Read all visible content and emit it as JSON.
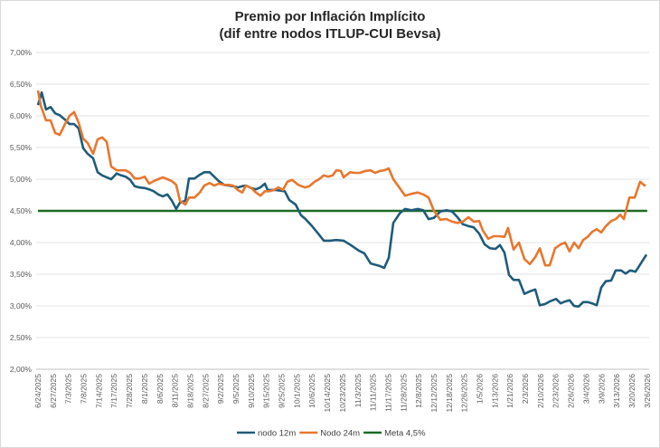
{
  "chart_data": {
    "type": "line",
    "title": [
      "Premio por Inflación Implícito",
      "(dif entre nodos ITLUP-CUI Bevsa)"
    ],
    "xlabel": "",
    "ylabel": "",
    "ylim": [
      2.0,
      7.0
    ],
    "yticks": [
      "2,00%",
      "2,50%",
      "3,00%",
      "3,50%",
      "4,00%",
      "4,50%",
      "5,00%",
      "5,50%",
      "6,00%",
      "6,50%",
      "7,00%"
    ],
    "x_tick_labels": [
      "6/24/2025",
      "6/27/2025",
      "7/3/2025",
      "7/8/2025",
      "7/14/2025",
      "7/17/2025",
      "7/28/2025",
      "8/1/2025",
      "8/6/2025",
      "8/11/2025",
      "8/18/2025",
      "8/27/2025",
      "9/2/2025",
      "9/5/2025",
      "9/10/2025",
      "9/15/2025",
      "9/25/2025",
      "10/1/2025",
      "10/6/2025",
      "10/14/2025",
      "10/23/2025",
      "11/3/2025",
      "11/11/2025",
      "11/17/2025",
      "11/28/2025",
      "12/8/2025",
      "12/12/2025",
      "12/18/2025",
      "12/26/2025",
      "1/5/2026",
      "1/13/2026",
      "1/21/2026",
      "2/3/2026",
      "2/10/2026",
      "2/23/2026",
      "2/26/2026",
      "3/4/2026",
      "3/9/2026",
      "3/13/2026",
      "3/20/2026",
      "3/26/2026"
    ],
    "x_note": "x values are positions on the category axis (0 = first tick label)",
    "grid": "horizontal",
    "legend": "bottom",
    "series": [
      {
        "name": "nodo 12m",
        "color": "#1f5c7a",
        "points": [
          [
            0,
            6.17
          ],
          [
            0.26,
            6.37
          ],
          [
            0.57,
            6.1
          ],
          [
            0.89,
            6.14
          ],
          [
            1.21,
            6.04
          ],
          [
            1.53,
            6.01
          ],
          [
            1.91,
            5.94
          ],
          [
            2.23,
            5.87
          ],
          [
            2.55,
            5.87
          ],
          [
            2.87,
            5.8
          ],
          [
            3.19,
            5.49
          ],
          [
            3.51,
            5.4
          ],
          [
            3.89,
            5.33
          ],
          [
            4.21,
            5.11
          ],
          [
            4.53,
            5.06
          ],
          [
            4.85,
            5.03
          ],
          [
            5.17,
            5.0
          ],
          [
            5.55,
            5.09
          ],
          [
            5.87,
            5.06
          ],
          [
            6.19,
            5.04
          ],
          [
            6.51,
            4.99
          ],
          [
            6.83,
            4.89
          ],
          [
            7.15,
            4.87
          ],
          [
            7.53,
            4.86
          ],
          [
            7.85,
            4.84
          ],
          [
            8.17,
            4.81
          ],
          [
            8.49,
            4.76
          ],
          [
            8.81,
            4.73
          ],
          [
            9.13,
            4.76
          ],
          [
            9.45,
            4.66
          ],
          [
            9.76,
            4.53
          ],
          [
            10.02,
            4.63
          ],
          [
            10.4,
            4.66
          ],
          [
            10.66,
            5.01
          ],
          [
            11.04,
            5.01
          ],
          [
            11.42,
            5.07
          ],
          [
            11.74,
            5.11
          ],
          [
            12.12,
            5.11
          ],
          [
            12.44,
            5.04
          ],
          [
            12.76,
            4.97
          ],
          [
            13.15,
            4.91
          ],
          [
            13.46,
            4.9
          ],
          [
            13.78,
            4.89
          ],
          [
            14.1,
            4.87
          ],
          [
            14.42,
            4.89
          ],
          [
            14.68,
            4.9
          ],
          [
            15.06,
            4.86
          ],
          [
            15.38,
            4.84
          ],
          [
            15.7,
            4.87
          ],
          [
            16.02,
            4.93
          ],
          [
            16.21,
            4.83
          ],
          [
            16.78,
            4.83
          ],
          [
            17.42,
            4.81
          ],
          [
            17.74,
            4.67
          ],
          [
            18.19,
            4.6
          ],
          [
            18.57,
            4.43
          ],
          [
            18.89,
            4.37
          ],
          [
            19.34,
            4.26
          ],
          [
            19.78,
            4.14
          ],
          [
            20.17,
            4.03
          ],
          [
            20.61,
            4.03
          ],
          [
            21.06,
            4.04
          ],
          [
            21.57,
            4.03
          ],
          [
            22.08,
            3.96
          ],
          [
            22.66,
            3.87
          ],
          [
            23.04,
            3.83
          ],
          [
            23.48,
            3.67
          ],
          [
            24.12,
            3.63
          ],
          [
            24.44,
            3.6
          ],
          [
            24.76,
            3.76
          ],
          [
            25.08,
            4.31
          ],
          [
            25.53,
            4.46
          ],
          [
            25.91,
            4.53
          ],
          [
            26.36,
            4.51
          ],
          [
            26.8,
            4.53
          ],
          [
            27.19,
            4.51
          ],
          [
            27.57,
            4.37
          ],
          [
            27.95,
            4.39
          ],
          [
            28.4,
            4.49
          ],
          [
            28.84,
            4.51
          ],
          [
            29.23,
            4.49
          ],
          [
            29.61,
            4.4
          ],
          [
            29.99,
            4.29
          ],
          [
            30.38,
            4.26
          ],
          [
            30.76,
            4.24
          ],
          [
            31.14,
            4.14
          ],
          [
            31.53,
            3.97
          ],
          [
            31.91,
            3.91
          ],
          [
            32.29,
            3.9
          ],
          [
            32.61,
            3.96
          ],
          [
            32.93,
            3.84
          ],
          [
            33.25,
            3.49
          ],
          [
            33.57,
            3.41
          ],
          [
            33.95,
            3.41
          ],
          [
            34.33,
            3.19
          ],
          [
            34.72,
            3.23
          ],
          [
            35.1,
            3.26
          ],
          [
            35.42,
            3.01
          ],
          [
            35.8,
            3.03
          ],
          [
            36.12,
            3.07
          ],
          [
            36.57,
            3.11
          ],
          [
            36.89,
            3.04
          ],
          [
            37.21,
            3.07
          ],
          [
            37.52,
            3.09
          ],
          [
            37.84,
            3.0
          ],
          [
            38.16,
            2.99
          ],
          [
            38.48,
            3.06
          ],
          [
            38.8,
            3.06
          ],
          [
            39.12,
            3.04
          ],
          [
            39.44,
            3.01
          ],
          [
            39.76,
            3.29
          ],
          [
            40.08,
            3.39
          ],
          [
            40.46,
            3.4
          ],
          [
            40.78,
            3.56
          ],
          [
            41.16,
            3.56
          ],
          [
            41.48,
            3.51
          ],
          [
            41.8,
            3.56
          ],
          [
            42.18,
            3.54
          ],
          [
            42.95,
            3.81
          ]
        ]
      },
      {
        "name": "Nodo 24m",
        "color": "#e8772e",
        "points": [
          [
            0,
            6.4
          ],
          [
            0.2,
            6.16
          ],
          [
            0.57,
            5.93
          ],
          [
            0.89,
            5.93
          ],
          [
            1.21,
            5.73
          ],
          [
            1.53,
            5.7
          ],
          [
            1.91,
            5.87
          ],
          [
            2.23,
            6.0
          ],
          [
            2.55,
            6.06
          ],
          [
            2.87,
            5.89
          ],
          [
            3.19,
            5.64
          ],
          [
            3.51,
            5.57
          ],
          [
            3.89,
            5.4
          ],
          [
            4.21,
            5.63
          ],
          [
            4.53,
            5.66
          ],
          [
            4.85,
            5.59
          ],
          [
            5.17,
            5.2
          ],
          [
            5.55,
            5.14
          ],
          [
            5.87,
            5.14
          ],
          [
            6.19,
            5.14
          ],
          [
            6.51,
            5.1
          ],
          [
            6.83,
            5.01
          ],
          [
            7.15,
            5.01
          ],
          [
            7.53,
            5.04
          ],
          [
            7.85,
            4.93
          ],
          [
            8.17,
            4.97
          ],
          [
            8.49,
            5.0
          ],
          [
            8.81,
            5.03
          ],
          [
            9.13,
            5.0
          ],
          [
            9.45,
            4.97
          ],
          [
            9.76,
            4.91
          ],
          [
            10.02,
            4.66
          ],
          [
            10.4,
            4.6
          ],
          [
            10.66,
            4.71
          ],
          [
            11.04,
            4.71
          ],
          [
            11.42,
            4.79
          ],
          [
            11.74,
            4.9
          ],
          [
            12.12,
            4.94
          ],
          [
            12.44,
            4.9
          ],
          [
            12.76,
            4.93
          ],
          [
            13.15,
            4.91
          ],
          [
            13.46,
            4.91
          ],
          [
            13.78,
            4.9
          ],
          [
            14.1,
            4.83
          ],
          [
            14.42,
            4.79
          ],
          [
            14.68,
            4.9
          ],
          [
            15.06,
            4.86
          ],
          [
            15.38,
            4.79
          ],
          [
            15.7,
            4.74
          ],
          [
            16.02,
            4.81
          ],
          [
            16.34,
            4.81
          ],
          [
            16.66,
            4.83
          ],
          [
            16.97,
            4.87
          ],
          [
            17.29,
            4.83
          ],
          [
            17.61,
            4.96
          ],
          [
            17.93,
            4.99
          ],
          [
            18.38,
            4.91
          ],
          [
            18.83,
            4.87
          ],
          [
            19.15,
            4.89
          ],
          [
            19.53,
            4.96
          ],
          [
            19.85,
            5.0
          ],
          [
            20.17,
            5.06
          ],
          [
            20.49,
            5.04
          ],
          [
            20.8,
            5.06
          ],
          [
            21.06,
            5.14
          ],
          [
            21.38,
            5.13
          ],
          [
            21.57,
            5.03
          ],
          [
            22.02,
            5.11
          ],
          [
            22.34,
            5.1
          ],
          [
            22.72,
            5.1
          ],
          [
            23.1,
            5.13
          ],
          [
            23.48,
            5.14
          ],
          [
            23.8,
            5.1
          ],
          [
            24.12,
            5.13
          ],
          [
            24.44,
            5.14
          ],
          [
            24.76,
            5.17
          ],
          [
            25.08,
            5.0
          ],
          [
            25.53,
            4.86
          ],
          [
            25.91,
            4.74
          ],
          [
            26.36,
            4.77
          ],
          [
            26.8,
            4.79
          ],
          [
            27.19,
            4.76
          ],
          [
            27.57,
            4.71
          ],
          [
            27.95,
            4.5
          ],
          [
            28.4,
            4.36
          ],
          [
            28.84,
            4.37
          ],
          [
            29.23,
            4.33
          ],
          [
            29.61,
            4.31
          ],
          [
            29.99,
            4.33
          ],
          [
            30.38,
            4.4
          ],
          [
            30.76,
            4.33
          ],
          [
            31.14,
            4.34
          ],
          [
            31.4,
            4.19
          ],
          [
            31.78,
            4.06
          ],
          [
            32.16,
            4.1
          ],
          [
            32.55,
            4.1
          ],
          [
            32.93,
            4.09
          ],
          [
            33.18,
            4.23
          ],
          [
            33.57,
            3.89
          ],
          [
            33.95,
            4.0
          ],
          [
            34.33,
            3.74
          ],
          [
            34.72,
            3.66
          ],
          [
            35.1,
            3.77
          ],
          [
            35.42,
            3.91
          ],
          [
            35.8,
            3.64
          ],
          [
            36.12,
            3.64
          ],
          [
            36.5,
            3.91
          ],
          [
            36.89,
            3.97
          ],
          [
            37.21,
            4.0
          ],
          [
            37.52,
            3.86
          ],
          [
            37.84,
            4.0
          ],
          [
            38.16,
            3.91
          ],
          [
            38.48,
            4.04
          ],
          [
            38.8,
            4.09
          ],
          [
            39.12,
            4.17
          ],
          [
            39.44,
            4.21
          ],
          [
            39.76,
            4.16
          ],
          [
            40.08,
            4.26
          ],
          [
            40.46,
            4.34
          ],
          [
            40.78,
            4.37
          ],
          [
            41.1,
            4.44
          ],
          [
            41.35,
            4.37
          ],
          [
            41.74,
            4.71
          ],
          [
            42.12,
            4.71
          ],
          [
            42.5,
            4.96
          ],
          [
            42.88,
            4.89
          ]
        ]
      },
      {
        "name": "Meta 4,5%",
        "color": "#1e6b24",
        "points": [
          [
            0,
            4.5
          ],
          [
            43,
            4.5
          ]
        ]
      }
    ]
  }
}
